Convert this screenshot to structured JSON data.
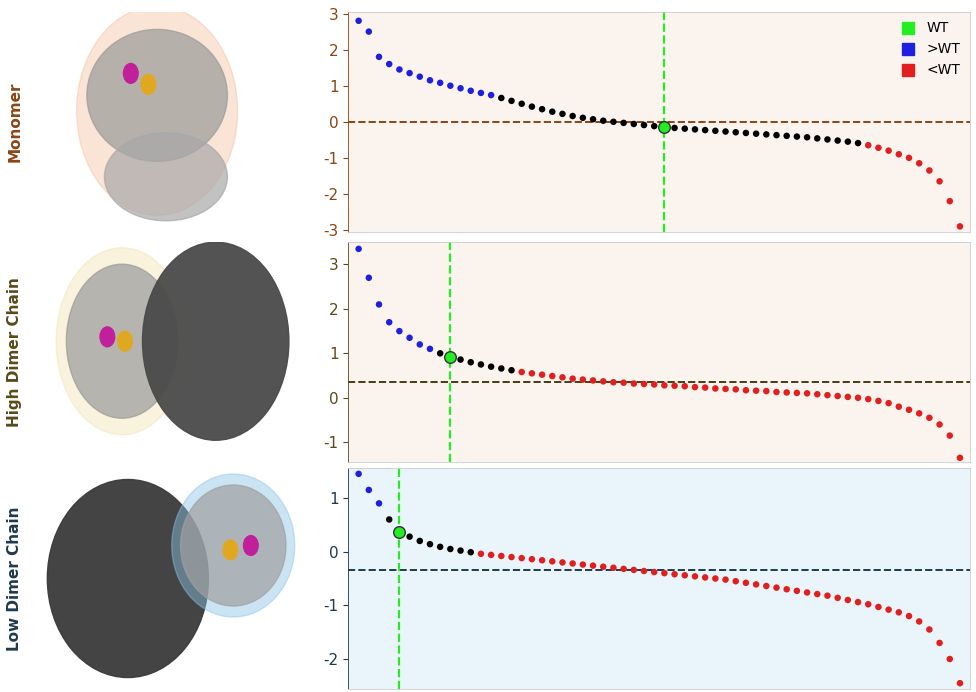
{
  "chart_data": [
    {
      "type": "scatter",
      "title": "Monomer",
      "marker": "o",
      "tick_labels": "y",
      "legend": "upper right",
      "xlim": [
        0,
        61
      ],
      "ylim": [
        -3.05,
        3.05
      ],
      "yticks": [
        -3,
        -2,
        -1,
        0,
        1,
        2,
        3
      ],
      "baseline": 0,
      "series": [
        {
          "name": "WT",
          "color": "#22ee22",
          "x": [
            31
          ],
          "values": [
            -0.15
          ]
        },
        {
          "name": ">WT",
          "color": "#1f1fe0",
          "x": [
            1,
            2,
            3,
            4,
            5,
            6,
            7,
            8,
            9,
            10,
            11,
            12,
            13,
            14
          ],
          "values": [
            2.8,
            2.5,
            1.8,
            1.6,
            1.45,
            1.35,
            1.25,
            1.15,
            1.08,
            1.0,
            0.93,
            0.86,
            0.8,
            0.74
          ]
        },
        {
          "name": "<WT",
          "color": "#e01f1f",
          "x": [
            51,
            52,
            53,
            54,
            55,
            56,
            57,
            58,
            59,
            60
          ],
          "values": [
            -0.65,
            -0.72,
            -0.8,
            -0.9,
            -1.0,
            -1.15,
            -1.35,
            -1.65,
            -2.2,
            -2.9
          ]
        },
        {
          "color": "#000000",
          "x": [
            15,
            16,
            17,
            18,
            19,
            20,
            21,
            22,
            23,
            24,
            25,
            26,
            27,
            28,
            29,
            30,
            32,
            33,
            34,
            35,
            36,
            37,
            38,
            39,
            40,
            41,
            42,
            43,
            44,
            45,
            46,
            47,
            48,
            49,
            50
          ],
          "values": [
            0.66,
            0.58,
            0.5,
            0.42,
            0.35,
            0.28,
            0.22,
            0.16,
            0.11,
            0.07,
            0.03,
            0.0,
            -0.03,
            -0.06,
            -0.09,
            -0.12,
            -0.17,
            -0.19,
            -0.21,
            -0.23,
            -0.25,
            -0.27,
            -0.29,
            -0.31,
            -0.33,
            -0.35,
            -0.37,
            -0.39,
            -0.41,
            -0.43,
            -0.46,
            -0.49,
            -0.52,
            -0.55,
            -0.59
          ]
        }
      ]
    },
    {
      "type": "scatter",
      "title": "High Dimer Chain",
      "marker": "o",
      "tick_labels": "y",
      "xlim": [
        0,
        61
      ],
      "ylim": [
        -1.45,
        3.5
      ],
      "yticks": [
        -1,
        0,
        1,
        2,
        3
      ],
      "baseline": 0.35,
      "series": [
        {
          "name": "WT",
          "color": "#22ee22",
          "x": [
            10
          ],
          "values": [
            0.92
          ]
        },
        {
          "name": ">WT",
          "color": "#1f1fe0",
          "x": [
            1,
            2,
            3,
            4,
            5,
            6,
            7,
            8
          ],
          "values": [
            3.35,
            2.7,
            2.1,
            1.7,
            1.5,
            1.35,
            1.2,
            1.1
          ]
        },
        {
          "name": "<WT",
          "color": "#e01f1f",
          "x": [
            17,
            18,
            19,
            20,
            21,
            22,
            23,
            24,
            25,
            26,
            27,
            28,
            29,
            30,
            31,
            32,
            33,
            34,
            35,
            36,
            37,
            38,
            39,
            40,
            41,
            42,
            43,
            44,
            45,
            46,
            47,
            48,
            49,
            50,
            51,
            52,
            53,
            54,
            55,
            56,
            57,
            58,
            59,
            60
          ],
          "values": [
            0.58,
            0.55,
            0.52,
            0.49,
            0.46,
            0.43,
            0.41,
            0.39,
            0.37,
            0.35,
            0.34,
            0.32,
            0.31,
            0.3,
            0.28,
            0.27,
            0.26,
            0.24,
            0.23,
            0.21,
            0.2,
            0.19,
            0.17,
            0.16,
            0.15,
            0.13,
            0.12,
            0.11,
            0.1,
            0.08,
            0.06,
            0.04,
            0.02,
            0.0,
            -0.03,
            -0.07,
            -0.12,
            -0.2,
            -0.27,
            -0.35,
            -0.45,
            -0.6,
            -0.85,
            -1.35
          ]
        },
        {
          "color": "#000000",
          "x": [
            9,
            11,
            12,
            13,
            14,
            15,
            16
          ],
          "values": [
            1.0,
            0.86,
            0.8,
            0.75,
            0.7,
            0.66,
            0.62
          ]
        }
      ]
    },
    {
      "type": "scatter",
      "title": "Low Dimer Chain",
      "marker": "o",
      "tick_labels": "y",
      "xlim": [
        0,
        61
      ],
      "ylim": [
        -2.55,
        1.55
      ],
      "yticks": [
        -2,
        -1,
        0,
        1
      ],
      "baseline": -0.35,
      "series": [
        {
          "name": "WT",
          "color": "#22ee22",
          "x": [
            5
          ],
          "values": [
            0.37
          ]
        },
        {
          "name": ">WT",
          "color": "#1f1fe0",
          "x": [
            1,
            2,
            3
          ],
          "values": [
            1.45,
            1.15,
            0.9
          ]
        },
        {
          "name": "<WT",
          "color": "#e01f1f",
          "x": [
            13,
            14,
            15,
            16,
            17,
            18,
            19,
            20,
            21,
            22,
            23,
            24,
            25,
            26,
            27,
            28,
            29,
            30,
            31,
            32,
            33,
            34,
            35,
            36,
            37,
            38,
            39,
            40,
            41,
            42,
            43,
            44,
            45,
            46,
            47,
            48,
            49,
            50,
            51,
            52,
            53,
            54,
            55,
            56,
            57,
            58,
            59,
            60
          ],
          "values": [
            -0.04,
            -0.06,
            -0.08,
            -0.1,
            -0.12,
            -0.14,
            -0.16,
            -0.18,
            -0.2,
            -0.22,
            -0.24,
            -0.26,
            -0.28,
            -0.3,
            -0.32,
            -0.34,
            -0.36,
            -0.38,
            -0.4,
            -0.42,
            -0.44,
            -0.46,
            -0.48,
            -0.5,
            -0.52,
            -0.55,
            -0.58,
            -0.61,
            -0.64,
            -0.67,
            -0.7,
            -0.73,
            -0.76,
            -0.79,
            -0.82,
            -0.86,
            -0.9,
            -0.94,
            -0.98,
            -1.03,
            -1.08,
            -1.13,
            -1.2,
            -1.3,
            -1.45,
            -1.7,
            -2.0,
            -2.45
          ]
        },
        {
          "color": "#000000",
          "x": [
            4,
            6,
            7,
            8,
            9,
            10,
            11,
            12
          ],
          "values": [
            0.6,
            0.28,
            0.2,
            0.14,
            0.09,
            0.05,
            0.02,
            -0.01
          ]
        }
      ]
    }
  ]
}
